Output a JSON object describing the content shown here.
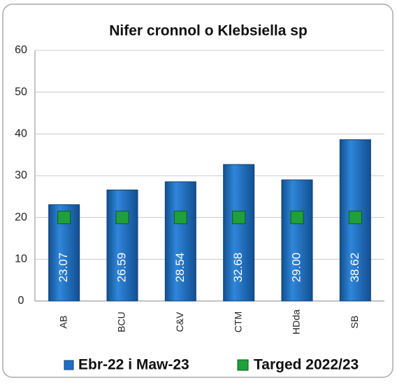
{
  "chart_data": {
    "type": "bar",
    "title": "Nifer cronnol o Klebsiella sp",
    "categories": [
      "AB",
      "BCU",
      "C&V",
      "CTM",
      "HDda",
      "SB"
    ],
    "series": [
      {
        "name": "Ebr-22 i Maw-23",
        "color": "#1f6fc5",
        "values": [
          23.07,
          26.59,
          28.54,
          32.68,
          29.0,
          38.62
        ],
        "value_labels": [
          "23.07",
          "26.59",
          "28.54",
          "32.68",
          "29.00",
          "38.62"
        ]
      },
      {
        "name": "Targed 2022/23",
        "color": "#1fa03a",
        "values": [
          20,
          20,
          20,
          20,
          20,
          20
        ]
      }
    ],
    "ylim": [
      0,
      60
    ],
    "yticks": [
      0,
      10,
      20,
      30,
      40,
      50,
      60
    ],
    "grid": true,
    "legend": "bottom"
  }
}
